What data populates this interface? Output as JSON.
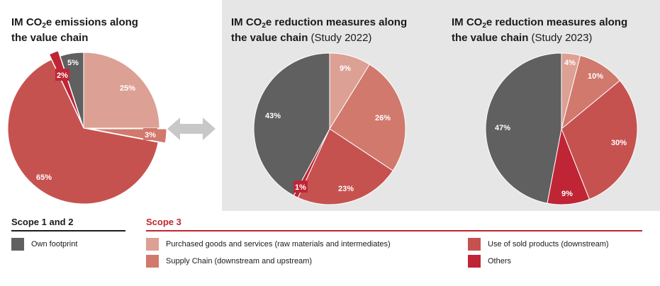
{
  "colors": {
    "own_footprint": "#606060",
    "purchased_goods": "#dca094",
    "supply_chain": "#d0796c",
    "use_of_sold_products": "#c6524f",
    "others": "#bf2535",
    "panel_background": "#e6e6e6",
    "arrow": "#c8c8c8"
  },
  "icons": {
    "double_arrow": "double-arrow-icon"
  },
  "chart_data": [
    {
      "type": "pie",
      "title_parts": [
        "IM CO",
        "2",
        "e emissions along",
        "the value chain"
      ],
      "slices": [
        {
          "category": "Purchased goods and services (raw materials and intermediates)",
          "value": 25,
          "label": "25%",
          "color": "#dca094"
        },
        {
          "category": "Supply Chain (downstream and upstream)",
          "value": 3,
          "label": "3%",
          "color": "#d0796c"
        },
        {
          "category": "Use of sold products (downstream)",
          "value": 65,
          "label": "65%",
          "color": "#c6524f"
        },
        {
          "category": "Others",
          "value": 2,
          "label": "2%",
          "color": "#bf2535"
        },
        {
          "category": "Own footprint",
          "value": 5,
          "label": "5%",
          "color": "#606060"
        }
      ]
    },
    {
      "type": "pie",
      "title_parts": [
        "IM CO",
        "2",
        "e reduction measures along",
        "the value chain",
        "(Study 2022)"
      ],
      "slices": [
        {
          "category": "Purchased goods and services (raw materials and intermediates)",
          "value": 9,
          "label": "9%",
          "color": "#dca094"
        },
        {
          "category": "Supply Chain (downstream and upstream)",
          "value": 26,
          "label": "26%",
          "color": "#d0796c"
        },
        {
          "category": "Use of sold products (downstream)",
          "value": 23,
          "label": "23%",
          "color": "#c6524f"
        },
        {
          "category": "Others",
          "value": 1,
          "label": "1%",
          "color": "#bf2535"
        },
        {
          "category": "Own footprint",
          "value": 43,
          "label": "43%",
          "color": "#606060"
        }
      ]
    },
    {
      "type": "pie",
      "title_parts": [
        "IM CO",
        "2",
        "e reduction measures along",
        "the value chain",
        "(Study 2023)"
      ],
      "slices": [
        {
          "category": "Purchased goods and services (raw materials and intermediates)",
          "value": 4,
          "label": "4%",
          "color": "#dca094"
        },
        {
          "category": "Supply Chain (downstream and upstream)",
          "value": 10,
          "label": "10%",
          "color": "#d0796c"
        },
        {
          "category": "Use of sold products (downstream)",
          "value": 30,
          "label": "30%",
          "color": "#c6524f"
        },
        {
          "category": "Others",
          "value": 9,
          "label": "9%",
          "color": "#bf2535"
        },
        {
          "category": "Own footprint",
          "value": 47,
          "label": "47%",
          "color": "#606060"
        }
      ]
    }
  ],
  "legend": {
    "scope12_title": "Scope 1 and 2",
    "scope3_title": "Scope 3",
    "items": {
      "own_footprint": "Own footprint",
      "purchased_goods": "Purchased goods and services (raw materials and intermediates)",
      "supply_chain": "Supply Chain (downstream and upstream)",
      "use_of_sold_products": "Use of sold products (downstream)",
      "others": "Others"
    }
  }
}
